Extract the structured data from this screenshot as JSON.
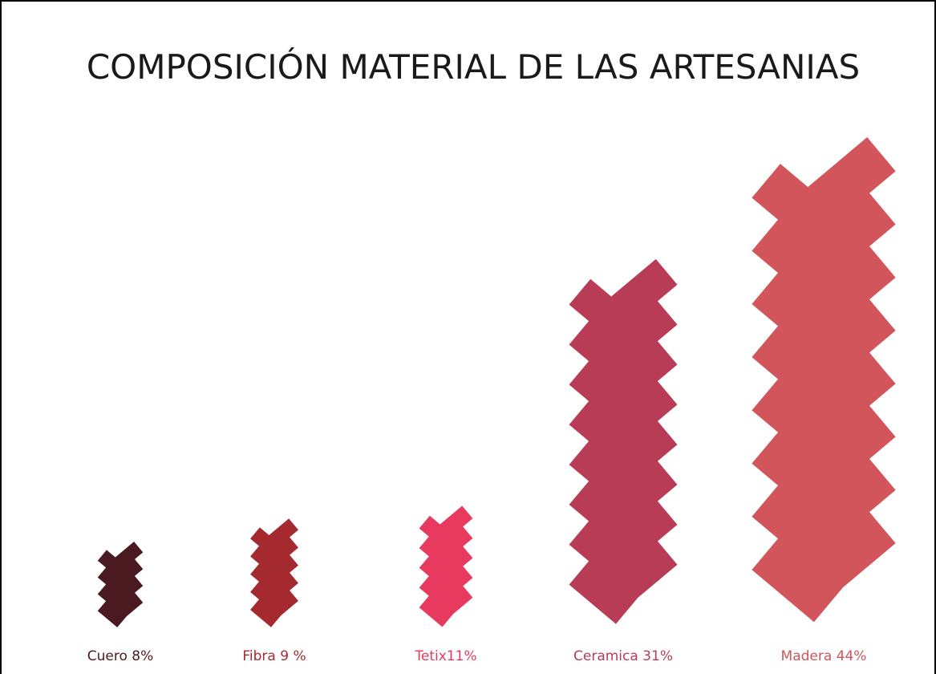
{
  "chart_data": {
    "type": "bar",
    "title": "COMPOSICIÓN MATERIAL DE LAS ARTESANIAS",
    "categories": [
      "Cuero 8%",
      "Fibra 9 %",
      "Tetix11%",
      "Ceramica 31%",
      "Madera 44%"
    ],
    "values": [
      8,
      9,
      11,
      31,
      44
    ],
    "colors": [
      "#4a1a20",
      "#a52a30",
      "#e83a5e",
      "#b83c55",
      "#d1555b"
    ]
  }
}
